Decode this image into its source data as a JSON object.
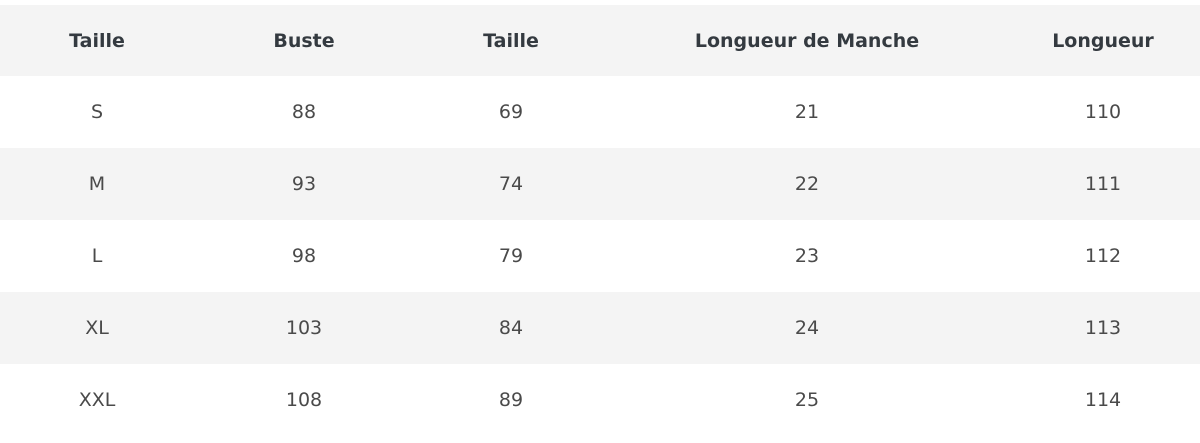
{
  "table": {
    "headers": [
      "Taille",
      "Buste",
      "Taille",
      "Longueur de Manche",
      "Longueur"
    ],
    "rows": [
      [
        "S",
        "88",
        "69",
        "21",
        "110"
      ],
      [
        "M",
        "93",
        "74",
        "22",
        "111"
      ],
      [
        "L",
        "98",
        "79",
        "23",
        "112"
      ],
      [
        "XL",
        "103",
        "84",
        "24",
        "113"
      ],
      [
        "XXL",
        "108",
        "89",
        "25",
        "114"
      ]
    ]
  }
}
